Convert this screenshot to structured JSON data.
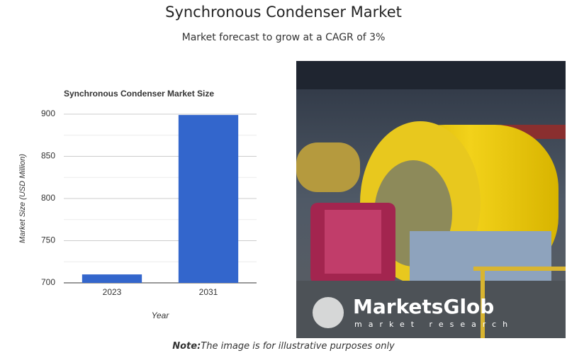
{
  "header": {
    "title": "Synchronous Condenser Market",
    "subtitle": "Market forecast to grow at a CAGR of 3%"
  },
  "chart_data": {
    "type": "bar",
    "title": "Synchronous Condenser Market Size",
    "x_label": "Year",
    "y_label": "Market Size (USD Million)",
    "categories": [
      "2023",
      "2031"
    ],
    "values": [
      710,
      899
    ],
    "color": "#3366cc",
    "ylim": [
      700,
      900
    ],
    "yticks": [
      700,
      750,
      800,
      850,
      900
    ],
    "minor_yticks": [
      725,
      775,
      825,
      875
    ],
    "grid": true
  },
  "image": {
    "logo": "MarketsGlob",
    "logo_tagline": "market research"
  },
  "note": {
    "label": "Note:",
    "text": "The image is for illustrative purposes only"
  }
}
